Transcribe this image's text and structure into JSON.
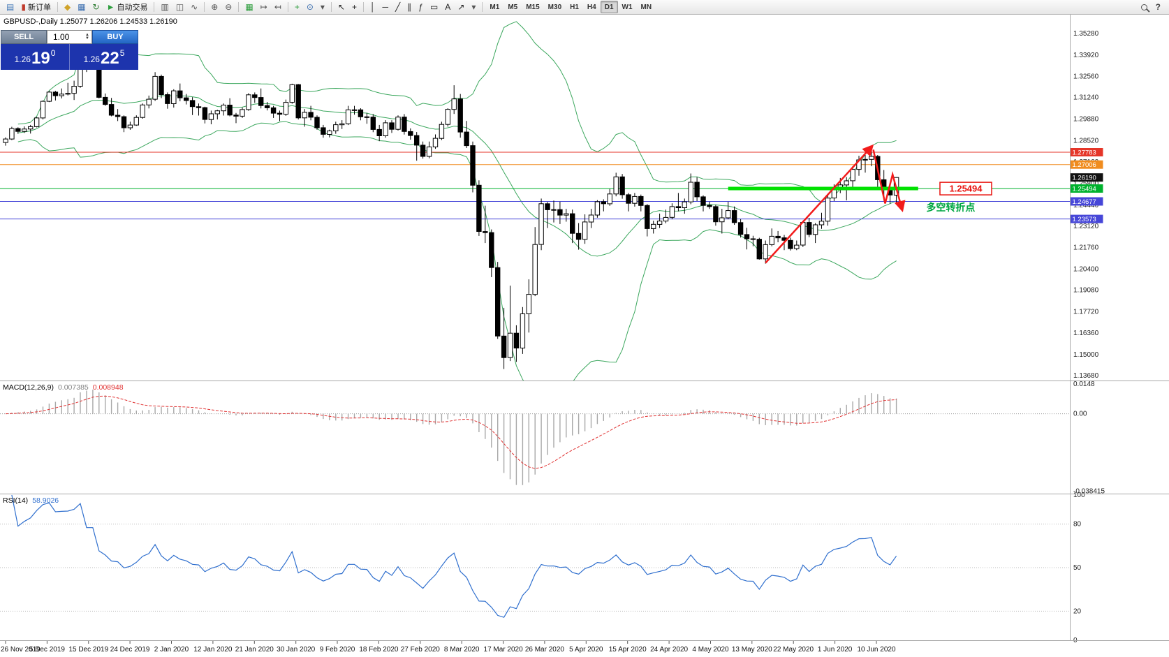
{
  "toolbar": {
    "groups": [
      {
        "items": [
          {
            "name": "new-chart-button",
            "glyph": "▤",
            "color": "#4a7ebb"
          },
          {
            "name": "new-order-button",
            "glyph": "▮",
            "color": "#c03a2b",
            "label": "新订单"
          }
        ]
      },
      {
        "items": [
          {
            "name": "profiles-button",
            "glyph": "◆",
            "color": "#d0a32a"
          },
          {
            "name": "market-watch-button",
            "glyph": "▦",
            "color": "#3c6fb0"
          },
          {
            "name": "navigator-button",
            "glyph": "↻",
            "color": "#2e7d32"
          },
          {
            "name": "autotrading-button",
            "glyph": "►",
            "color": "#2e9e3e",
            "label": "自动交易"
          }
        ]
      },
      {
        "items": [
          {
            "name": "bar-chart-button",
            "glyph": "▥",
            "color": "#555555"
          },
          {
            "name": "candlestick-chart-button",
            "glyph": "◫",
            "color": "#555555"
          },
          {
            "name": "line-chart-button",
            "glyph": "∿",
            "color": "#555555"
          }
        ]
      },
      {
        "items": [
          {
            "name": "zoom-in-button",
            "glyph": "⊕",
            "color": "#555555"
          },
          {
            "name": "zoom-out-button",
            "glyph": "⊖",
            "color": "#555555"
          }
        ]
      },
      {
        "items": [
          {
            "name": "tile-windows-button",
            "glyph": "▦",
            "color": "#2e9e3e"
          },
          {
            "name": "auto-scroll-button",
            "glyph": "↦",
            "color": "#555555"
          },
          {
            "name": "chart-shift-button",
            "glyph": "↤",
            "color": "#555555"
          }
        ]
      },
      {
        "items": [
          {
            "name": "indicators-button",
            "glyph": "+",
            "color": "#2e9e3e"
          },
          {
            "name": "periods-button",
            "glyph": "⊙",
            "color": "#3c6fb0"
          },
          {
            "name": "templates-button",
            "glyph": "▾",
            "color": "#555555"
          }
        ]
      },
      {
        "items": [
          {
            "name": "cursor-button",
            "glyph": "↖",
            "color": "#222222"
          },
          {
            "name": "crosshair-button",
            "glyph": "+",
            "color": "#222222"
          }
        ]
      },
      {
        "items": [
          {
            "name": "vertical-line-button",
            "glyph": "│",
            "color": "#222222"
          },
          {
            "name": "horizontal-line-button",
            "glyph": "─",
            "color": "#222222"
          },
          {
            "name": "trendline-button",
            "glyph": "╱",
            "color": "#222222"
          },
          {
            "name": "channel-button",
            "glyph": "∥",
            "color": "#222222"
          },
          {
            "name": "fibonacci-button",
            "glyph": "ƒ",
            "color": "#222222"
          },
          {
            "name": "shapes-button",
            "glyph": "▭",
            "color": "#222222"
          },
          {
            "name": "text-button",
            "glyph": "A",
            "color": "#222222"
          },
          {
            "name": "arrows-button",
            "glyph": "↗",
            "color": "#222222"
          },
          {
            "name": "more-tools-button",
            "glyph": "▾",
            "color": "#555555"
          }
        ]
      }
    ],
    "timeframes": [
      "M1",
      "M5",
      "M15",
      "M30",
      "H1",
      "H4",
      "D1",
      "W1",
      "MN"
    ],
    "active_timeframe": "D1",
    "help_label": "?"
  },
  "chart": {
    "title": "GBPUSD-,Daily 1.25077 1.26206 1.24533 1.26190",
    "symbol": "GBPUSD-",
    "period": "Daily",
    "ohlc": {
      "open": "1.25077",
      "high": "1.26206",
      "low": "1.24533",
      "close": "1.26190"
    },
    "one_click": {
      "sell_label": "SELL",
      "buy_label": "BUY",
      "lot": "1.00",
      "sell_big": "1.26",
      "sell_pips": "19",
      "sell_pt": "0",
      "buy_big": "1.26",
      "buy_pips": "22",
      "buy_pt": "5"
    }
  },
  "chart_data": {
    "type": "candlestick",
    "symbol": "GBPUSD",
    "timeframe": "Daily",
    "candles": [
      [
        1.284,
        1.2872,
        1.282,
        1.2862
      ],
      [
        1.2862,
        1.2939,
        1.2855,
        1.2928
      ],
      [
        1.2928,
        1.2936,
        1.2895,
        1.291
      ],
      [
        1.291,
        1.2941,
        1.29,
        1.2925
      ],
      [
        1.2925,
        1.2951,
        1.2896,
        1.294
      ],
      [
        1.294,
        1.3001,
        1.2935,
        1.2995
      ],
      [
        1.2995,
        1.3105,
        1.2985,
        1.31
      ],
      [
        1.31,
        1.3166,
        1.3095,
        1.3158
      ],
      [
        1.3158,
        1.3166,
        1.3105,
        1.3135
      ],
      [
        1.3135,
        1.3181,
        1.3118,
        1.3145
      ],
      [
        1.3145,
        1.3216,
        1.3137,
        1.315
      ],
      [
        1.315,
        1.323,
        1.3108,
        1.3195
      ],
      [
        1.3195,
        1.3515,
        1.3185,
        1.348
      ],
      [
        1.348,
        1.3514,
        1.3285,
        1.333
      ],
      [
        1.333,
        1.3422,
        1.3302,
        1.333
      ],
      [
        1.333,
        1.3341,
        1.3118,
        1.3125
      ],
      [
        1.3125,
        1.3149,
        1.3071,
        1.308
      ],
      [
        1.308,
        1.3121,
        1.3005,
        1.3012
      ],
      [
        1.3012,
        1.3051,
        1.2975,
        1.3003
      ],
      [
        1.3003,
        1.3011,
        1.2905,
        1.2933
      ],
      [
        1.2933,
        1.2971,
        1.292,
        1.295
      ],
      [
        1.295,
        1.3011,
        1.2945,
        1.2998
      ],
      [
        1.2998,
        1.3086,
        1.299,
        1.3077
      ],
      [
        1.3077,
        1.3136,
        1.3055,
        1.3113
      ],
      [
        1.3113,
        1.3284,
        1.3102,
        1.3257
      ],
      [
        1.3257,
        1.3268,
        1.312,
        1.3142
      ],
      [
        1.3142,
        1.3156,
        1.3053,
        1.3085
      ],
      [
        1.3085,
        1.3176,
        1.306,
        1.3166
      ],
      [
        1.3166,
        1.3212,
        1.31,
        1.3122
      ],
      [
        1.3122,
        1.3146,
        1.308,
        1.3105
      ],
      [
        1.3105,
        1.3126,
        1.3013,
        1.3066
      ],
      [
        1.3066,
        1.3086,
        1.301,
        1.306
      ],
      [
        1.306,
        1.3066,
        1.296,
        1.2985
      ],
      [
        1.2985,
        1.3041,
        1.2955,
        1.3021
      ],
      [
        1.3021,
        1.3046,
        1.2985,
        1.304
      ],
      [
        1.304,
        1.3086,
        1.301,
        1.3076
      ],
      [
        1.3076,
        1.3119,
        1.3005,
        1.3013
      ],
      [
        1.3013,
        1.3026,
        1.2962,
        1.3006
      ],
      [
        1.3006,
        1.3061,
        1.2995,
        1.3048
      ],
      [
        1.3048,
        1.3151,
        1.304,
        1.3141
      ],
      [
        1.3141,
        1.3156,
        1.309,
        1.3124
      ],
      [
        1.3124,
        1.3181,
        1.3055,
        1.3073
      ],
      [
        1.3073,
        1.3096,
        1.3042,
        1.3059
      ],
      [
        1.3059,
        1.3071,
        1.2995,
        1.3025
      ],
      [
        1.3025,
        1.3041,
        1.2975,
        1.3018
      ],
      [
        1.3018,
        1.3111,
        1.3008,
        1.3093
      ],
      [
        1.3093,
        1.3211,
        1.3085,
        1.3205
      ],
      [
        1.3205,
        1.3209,
        1.2985,
        1.2995
      ],
      [
        1.2995,
        1.3051,
        1.294,
        1.303
      ],
      [
        1.303,
        1.3071,
        1.298,
        1.2999
      ],
      [
        1.2999,
        1.3011,
        1.292,
        1.2933
      ],
      [
        1.2933,
        1.2951,
        1.287,
        1.2891
      ],
      [
        1.2891,
        1.2921,
        1.2872,
        1.2913
      ],
      [
        1.2913,
        1.2971,
        1.2895,
        1.2952
      ],
      [
        1.2952,
        1.2981,
        1.2925,
        1.2958
      ],
      [
        1.2958,
        1.3071,
        1.295,
        1.3046
      ],
      [
        1.3046,
        1.3071,
        1.3015,
        1.3046
      ],
      [
        1.3046,
        1.3056,
        1.298,
        1.3002
      ],
      [
        1.3002,
        1.3026,
        1.2958,
        1.3
      ],
      [
        1.3,
        1.3019,
        1.2905,
        1.2922
      ],
      [
        1.2922,
        1.2951,
        1.2848,
        1.2882
      ],
      [
        1.2882,
        1.2981,
        1.287,
        1.2964
      ],
      [
        1.2964,
        1.2981,
        1.29,
        1.2923
      ],
      [
        1.2923,
        1.3011,
        1.2915,
        1.3
      ],
      [
        1.3,
        1.3019,
        1.289,
        1.2909
      ],
      [
        1.2909,
        1.2929,
        1.2858,
        1.2884
      ],
      [
        1.2884,
        1.2906,
        1.2725,
        1.2823
      ],
      [
        1.2823,
        1.2846,
        1.2738,
        1.2752
      ],
      [
        1.2752,
        1.2846,
        1.274,
        1.2812
      ],
      [
        1.2812,
        1.2891,
        1.28,
        1.2866
      ],
      [
        1.2866,
        1.2971,
        1.2855,
        1.2954
      ],
      [
        1.2954,
        1.3056,
        1.294,
        1.3049
      ],
      [
        1.3049,
        1.3201,
        1.302,
        1.3115
      ],
      [
        1.3115,
        1.3146,
        1.287,
        1.2906
      ],
      [
        1.2906,
        1.2976,
        1.2805,
        1.282
      ],
      [
        1.282,
        1.2846,
        1.2525,
        1.257
      ],
      [
        1.257,
        1.2601,
        1.225,
        1.2278
      ],
      [
        1.2278,
        1.2441,
        1.2205,
        1.2271
      ],
      [
        1.2271,
        1.2291,
        1.199,
        1.205
      ],
      [
        1.205,
        1.2086,
        1.16,
        1.1618
      ],
      [
        1.1618,
        1.1796,
        1.141,
        1.1482
      ],
      [
        1.1482,
        1.1936,
        1.146,
        1.1636
      ],
      [
        1.1636,
        1.1686,
        1.1455,
        1.1542
      ],
      [
        1.1542,
        1.1801,
        1.1505,
        1.1758
      ],
      [
        1.1758,
        1.1976,
        1.164,
        1.1881
      ],
      [
        1.1881,
        1.2306,
        1.187,
        1.2196
      ],
      [
        1.2196,
        1.2486,
        1.216,
        1.2453
      ],
      [
        1.2453,
        1.2464,
        1.23,
        1.2415
      ],
      [
        1.2415,
        1.2473,
        1.2335,
        1.2416
      ],
      [
        1.2416,
        1.2466,
        1.2325,
        1.2381
      ],
      [
        1.2381,
        1.2421,
        1.234,
        1.239
      ],
      [
        1.239,
        1.2416,
        1.2205,
        1.2266
      ],
      [
        1.2266,
        1.2331,
        1.2163,
        1.2228
      ],
      [
        1.2228,
        1.2386,
        1.22,
        1.2338
      ],
      [
        1.2338,
        1.2421,
        1.23,
        1.2382
      ],
      [
        1.2382,
        1.2476,
        1.2365,
        1.2466
      ],
      [
        1.2466,
        1.2481,
        1.2405,
        1.2453
      ],
      [
        1.2453,
        1.2546,
        1.244,
        1.2515
      ],
      [
        1.2515,
        1.2649,
        1.25,
        1.2623
      ],
      [
        1.2623,
        1.2641,
        1.2485,
        1.251
      ],
      [
        1.251,
        1.2521,
        1.2405,
        1.2456
      ],
      [
        1.2456,
        1.2521,
        1.2435,
        1.2499
      ],
      [
        1.2499,
        1.2511,
        1.2405,
        1.2442
      ],
      [
        1.2442,
        1.2451,
        1.2247,
        1.2296
      ],
      [
        1.2296,
        1.2346,
        1.2265,
        1.2323
      ],
      [
        1.2323,
        1.2391,
        1.23,
        1.2344
      ],
      [
        1.2344,
        1.2416,
        1.233,
        1.2367
      ],
      [
        1.2367,
        1.2456,
        1.2355,
        1.2435
      ],
      [
        1.2435,
        1.2521,
        1.2405,
        1.2428
      ],
      [
        1.2428,
        1.2486,
        1.239,
        1.2465
      ],
      [
        1.2465,
        1.2644,
        1.245,
        1.2589
      ],
      [
        1.2589,
        1.2621,
        1.247,
        1.2497
      ],
      [
        1.2497,
        1.2506,
        1.2405,
        1.2443
      ],
      [
        1.2443,
        1.2466,
        1.242,
        1.2435
      ],
      [
        1.2435,
        1.2446,
        1.2315,
        1.2339
      ],
      [
        1.2339,
        1.2421,
        1.2265,
        1.2364
      ],
      [
        1.2364,
        1.2466,
        1.2355,
        1.241
      ],
      [
        1.241,
        1.2436,
        1.232,
        1.2334
      ],
      [
        1.2334,
        1.2356,
        1.224,
        1.2259
      ],
      [
        1.2259,
        1.2301,
        1.2165,
        1.2232
      ],
      [
        1.2232,
        1.2251,
        1.2185,
        1.2229
      ],
      [
        1.2229,
        1.2238,
        1.21,
        1.2105
      ],
      [
        1.2105,
        1.2221,
        1.2075,
        1.2195
      ],
      [
        1.2195,
        1.2297,
        1.2185,
        1.2248
      ],
      [
        1.2248,
        1.2281,
        1.221,
        1.2238
      ],
      [
        1.2238,
        1.2256,
        1.216,
        1.2222
      ],
      [
        1.2222,
        1.2239,
        1.2158,
        1.217
      ],
      [
        1.217,
        1.2221,
        1.216,
        1.2192
      ],
      [
        1.2192,
        1.2346,
        1.218,
        1.2335
      ],
      [
        1.2335,
        1.2364,
        1.2242,
        1.2259
      ],
      [
        1.2259,
        1.2331,
        1.2205,
        1.232
      ],
      [
        1.232,
        1.2396,
        1.2295,
        1.2343
      ],
      [
        1.2343,
        1.2506,
        1.2315,
        1.2489
      ],
      [
        1.2489,
        1.2576,
        1.247,
        1.255
      ],
      [
        1.255,
        1.2616,
        1.252,
        1.2572
      ],
      [
        1.2572,
        1.2621,
        1.2475,
        1.2598
      ],
      [
        1.2598,
        1.2691,
        1.2545,
        1.267
      ],
      [
        1.267,
        1.2756,
        1.263,
        1.273
      ],
      [
        1.273,
        1.2761,
        1.265,
        1.2733
      ],
      [
        1.2733,
        1.2812,
        1.269,
        1.2752
      ],
      [
        1.2752,
        1.2761,
        1.2545,
        1.2605
      ],
      [
        1.2605,
        1.2666,
        1.2475,
        1.2543
      ],
      [
        1.2543,
        1.2581,
        1.2454,
        1.2508
      ],
      [
        1.25077,
        1.26206,
        1.24533,
        1.2619
      ]
    ],
    "indicators": {
      "bollinger": {
        "period": 20,
        "deviation": 2,
        "color": "#3ba75d"
      },
      "macd": {
        "name": "MACD(12,26,9)",
        "fast": 12,
        "slow": 26,
        "signal": 9,
        "value_main": "0.007385",
        "value_signal": "0.008948",
        "axis_labels": [
          "0.0148",
          "0.00",
          "-0.038415"
        ],
        "hist_color": "#a8a8a8",
        "signal_color": "#e03131"
      },
      "rsi": {
        "name": "RSI(14)",
        "period": 14,
        "value": "58.9026",
        "axis_labels": [
          100,
          80,
          50,
          20,
          0
        ],
        "levels": [
          80,
          50,
          20
        ],
        "color": "#2f6fce"
      }
    },
    "price_axis": {
      "labels": [
        "1.35280",
        "1.33920",
        "1.32560",
        "1.31240",
        "1.29880",
        "1.28520",
        "1.27160",
        "1.25800",
        "1.24440",
        "1.23120",
        "1.21760",
        "1.20400",
        "1.19080",
        "1.17720",
        "1.16360",
        "1.15000",
        "1.13680"
      ],
      "current_price": 1.2619,
      "current_label": "1.26190"
    },
    "hlines": [
      {
        "price": 1.27783,
        "label": "1.27783",
        "color": "#e53528"
      },
      {
        "price": 1.27006,
        "label": "1.27006",
        "color": "#f08c1e"
      },
      {
        "price": 1.25494,
        "label": "1.25494",
        "color": "#00b22d"
      },
      {
        "price": 1.24677,
        "label": "1.24677",
        "color": "#4646d8"
      },
      {
        "price": 1.23573,
        "label": "1.23573",
        "color": "#4646d8"
      }
    ],
    "segments": [
      {
        "i1": 116,
        "i2": 146.5,
        "price": 1.25494,
        "color": "#00e200",
        "width": 5
      }
    ],
    "arrows": [
      {
        "points": [
          [
            122,
            1.208
          ],
          [
            139,
            1.2812
          ]
        ],
        "color": "#f21b1b",
        "width": 2.5
      },
      {
        "points": [
          [
            139.3,
            1.2795
          ],
          [
            141.2,
            1.2455
          ],
          [
            142.4,
            1.2638
          ],
          [
            143.9,
            1.242
          ]
        ],
        "color": "#f21b1b",
        "width": 2.5
      }
    ],
    "annotations": [
      {
        "type": "box",
        "text": "1.25494",
        "i": 150,
        "price": 1.2549,
        "color": "#e8100c"
      },
      {
        "type": "text",
        "text": "多空转折点",
        "i": 147.8,
        "price": 1.2408,
        "color": "#00a642"
      }
    ],
    "time_axis": {
      "labels": [
        "26 Nov 2019",
        "5 Dec 2019",
        "15 Dec 2019",
        "24 Dec 2019",
        "2 Jan 2020",
        "12 Jan 2020",
        "21 Jan 2020",
        "30 Jan 2020",
        "9 Feb 2020",
        "18 Feb 2020",
        "27 Feb 2020",
        "8 Mar 2020",
        "17 Mar 2020",
        "26 Mar 2020",
        "5 Apr 2020",
        "15 Apr 2020",
        "24 Apr 2020",
        "4 May 2020",
        "13 May 2020",
        "22 May 2020",
        "1 Jun 2020",
        "10 Jun 2020"
      ]
    }
  },
  "colors": {
    "bull_candle": "#ffffff",
    "bear_candle": "#000000",
    "candle_outline": "#000000",
    "panel_bg": "#ffffff",
    "separator": "#a8a8a8",
    "current_price_tag": "#111111"
  }
}
